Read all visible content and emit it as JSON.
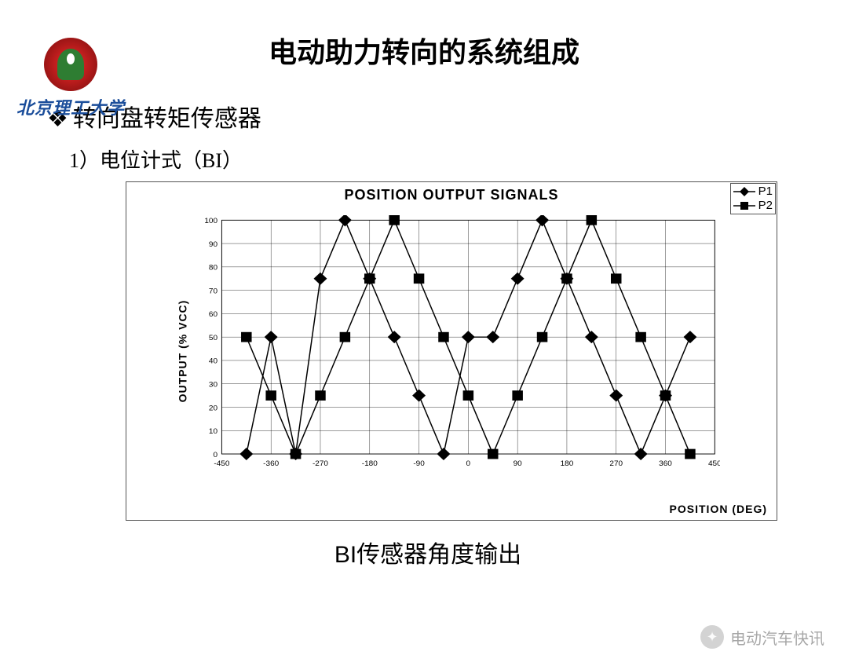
{
  "university": {
    "name": "北京理工大学"
  },
  "page_title": "电动助力转向的系统组成",
  "subtitle": "转向盘转矩传感器",
  "item_line": "1）电位计式（BI）",
  "caption": "BI传感器角度输出",
  "watermark": "电动汽车快讯",
  "chart": {
    "type": "line-scatter",
    "title": "POSITION OUTPUT SIGNALS",
    "xlabel": "POSITION (DEG)",
    "ylabel": "OUTPUT (% VCC)",
    "xlim": [
      -450,
      450
    ],
    "ylim": [
      0,
      100
    ],
    "xtick_step": 90,
    "ytick_step": 10,
    "xticks": [
      -450,
      -360,
      -270,
      -180,
      -90,
      0,
      90,
      180,
      270,
      360,
      450
    ],
    "yticks": [
      0,
      10,
      20,
      30,
      40,
      50,
      60,
      70,
      80,
      90,
      100
    ],
    "grid_color": "#000000",
    "grid_width": 0.6,
    "axis_color": "#000000",
    "background_color": "#ffffff",
    "line_color": "#000000",
    "line_width": 1.5,
    "marker_size": 12,
    "marker_stroke": "#000000",
    "marker_fill_p1": "#000000",
    "marker_fill_p2": "#000000",
    "title_fontsize": 18,
    "label_fontsize": 14,
    "tick_fontsize": 15,
    "legend": {
      "position": "top-right",
      "entries": [
        {
          "label": "P1",
          "marker": "diamond"
        },
        {
          "label": "P2",
          "marker": "square"
        }
      ]
    },
    "series": {
      "P1": {
        "marker": "diamond",
        "x": [
          -405,
          -360,
          -315,
          -270,
          -225,
          -180,
          -135,
          -90,
          -45,
          0,
          45,
          90,
          135,
          180,
          225,
          270,
          315,
          360,
          405
        ],
        "y": [
          0,
          50,
          0,
          75,
          100,
          75,
          50,
          25,
          0,
          50,
          50,
          75,
          100,
          75,
          50,
          25,
          0,
          25,
          50
        ]
      },
      "P2": {
        "marker": "square",
        "x": [
          -405,
          -360,
          -315,
          -270,
          -225,
          -180,
          -135,
          -90,
          -45,
          0,
          45,
          90,
          135,
          180,
          225,
          270,
          315,
          360,
          405
        ],
        "y": [
          50,
          25,
          0,
          25,
          50,
          75,
          100,
          75,
          50,
          25,
          0,
          25,
          50,
          75,
          100,
          75,
          50,
          25,
          0
        ]
      }
    }
  }
}
